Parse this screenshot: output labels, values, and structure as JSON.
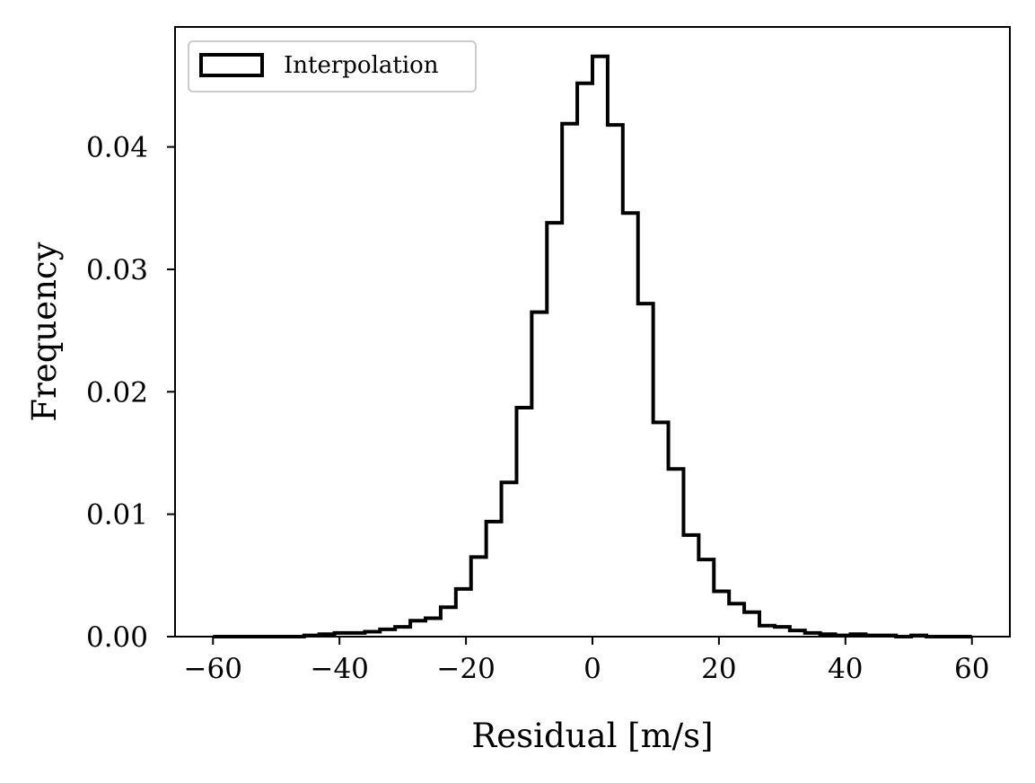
{
  "chart_data": {
    "type": "histogram",
    "xlabel": "Residual [m/s]",
    "ylabel": "Frequency",
    "xlim": [
      -66,
      66
    ],
    "ylim": [
      0,
      0.0498
    ],
    "x_ticks": [
      -60,
      -40,
      -20,
      0,
      20,
      40,
      60
    ],
    "x_tick_labels": [
      "−60",
      "−40",
      "−20",
      "0",
      "20",
      "40",
      "60"
    ],
    "y_ticks": [
      0,
      0.01,
      0.02,
      0.03,
      0.04
    ],
    "y_tick_labels": [
      "0.00",
      "0.01",
      "0.02",
      "0.03",
      "0.04"
    ],
    "bin_edges": [
      -60.0,
      -57.6,
      -55.2,
      -52.8,
      -50.4,
      -48.0,
      -45.6,
      -43.2,
      -40.8,
      -38.4,
      -36.0,
      -33.6,
      -31.2,
      -28.8,
      -26.4,
      -24.0,
      -21.6,
      -19.2,
      -16.8,
      -14.4,
      -12.0,
      -9.6,
      -7.2,
      -4.8,
      -2.4,
      0.0,
      2.4,
      4.8,
      7.2,
      9.6,
      12.0,
      14.4,
      16.8,
      19.2,
      21.6,
      24.0,
      26.4,
      28.8,
      31.2,
      33.6,
      36.0,
      38.4,
      40.8,
      43.2,
      45.6,
      48.0,
      50.4,
      52.8,
      55.2,
      57.6,
      60.0
    ],
    "values": [
      0.0,
      0.0,
      0.0,
      0.0,
      0.0,
      0.0,
      0.0001,
      0.0002,
      0.0003,
      0.0003,
      0.0004,
      0.0006,
      0.0008,
      0.0013,
      0.0015,
      0.0024,
      0.0039,
      0.0065,
      0.0094,
      0.0126,
      0.0187,
      0.0265,
      0.0338,
      0.0419,
      0.0452,
      0.0474,
      0.0418,
      0.0346,
      0.0272,
      0.0175,
      0.0137,
      0.0083,
      0.0063,
      0.0037,
      0.0027,
      0.002,
      0.0009,
      0.0008,
      0.0005,
      0.0003,
      0.0002,
      0.0001,
      0.0002,
      0.0001,
      0.0001,
      0.0,
      0.0001,
      0.0,
      0.0,
      0.0
    ],
    "series": [
      {
        "name": "Interpolation",
        "style": "step",
        "color": "#000000"
      }
    ],
    "legend": {
      "location": "top-left",
      "labels": [
        "Interpolation"
      ]
    },
    "grid": false
  }
}
